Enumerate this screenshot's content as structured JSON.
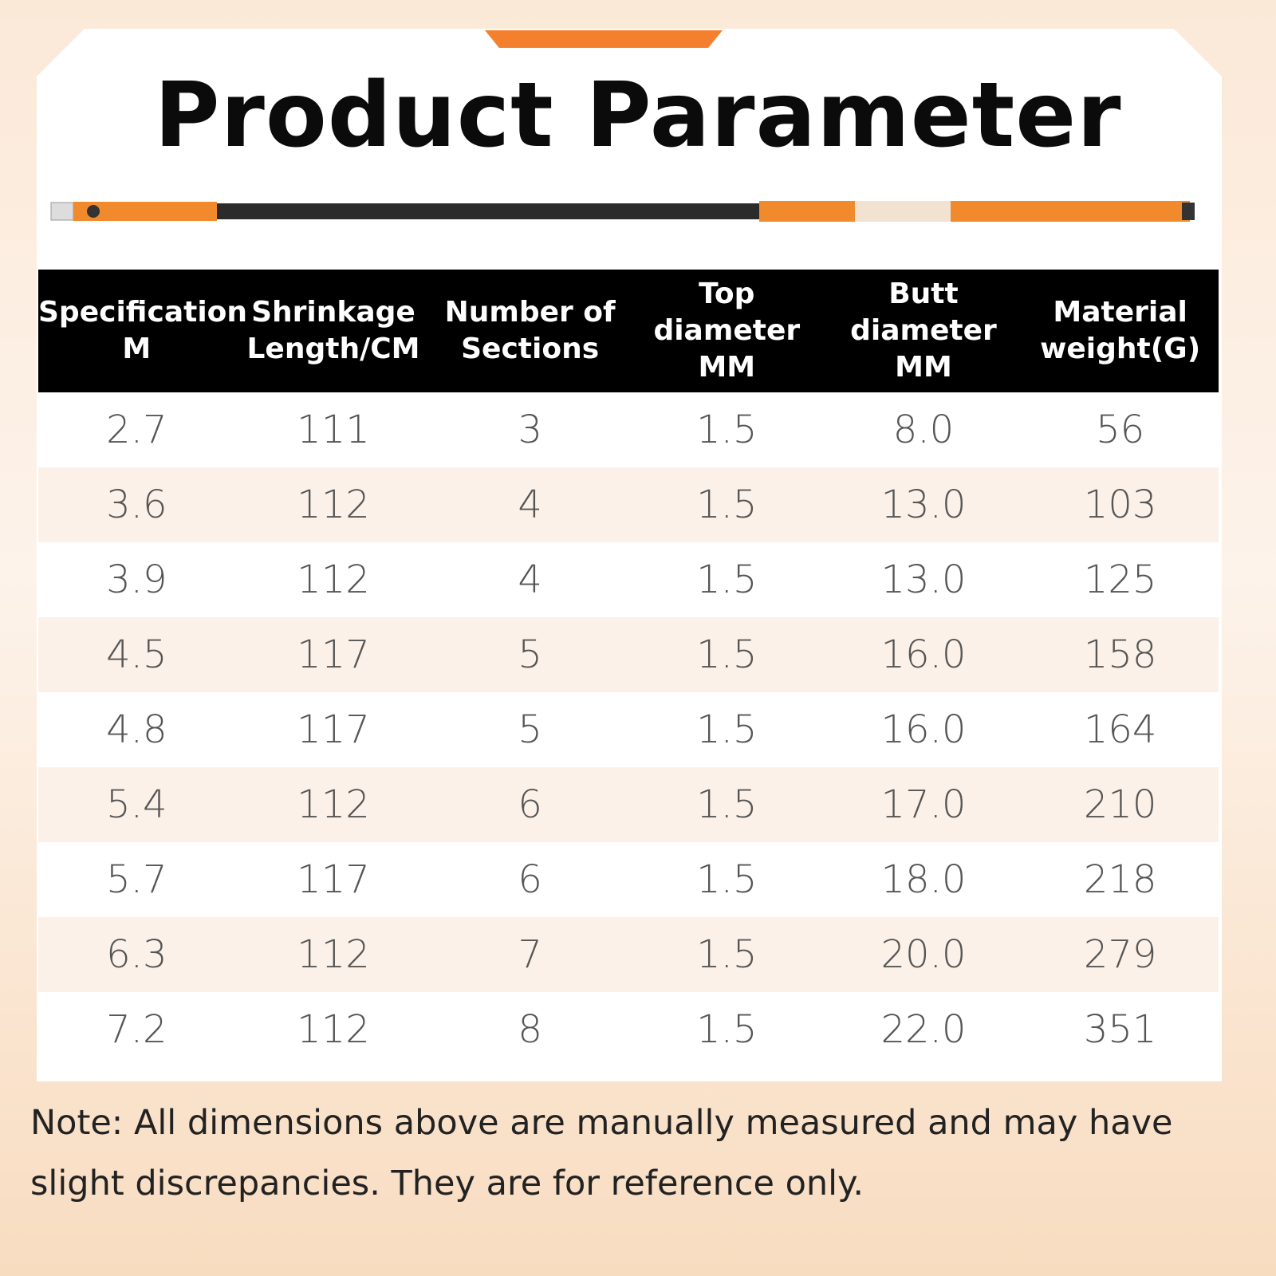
{
  "header": {
    "title": "Product Parameter"
  },
  "table": {
    "columns": [
      [
        "Specification",
        "M"
      ],
      [
        "Shrinkage",
        "Length/CM"
      ],
      [
        "Number of",
        "Sections"
      ],
      [
        "Top",
        "diameter",
        "MM"
      ],
      [
        "Butt",
        "diameter",
        "MM"
      ],
      [
        "Material",
        "weight(G)"
      ]
    ],
    "rows": [
      [
        "2.7",
        "111",
        "3",
        "1.5",
        "8.0",
        "56"
      ],
      [
        "3.6",
        "112",
        "4",
        "1.5",
        "13.0",
        "103"
      ],
      [
        "3.9",
        "112",
        "4",
        "1.5",
        "13.0",
        "125"
      ],
      [
        "4.5",
        "117",
        "5",
        "1.5",
        "16.0",
        "158"
      ],
      [
        "4.8",
        "117",
        "5",
        "1.5",
        "16.0",
        "164"
      ],
      [
        "5.4",
        "112",
        "6",
        "1.5",
        "17.0",
        "210"
      ],
      [
        "5.7",
        "117",
        "6",
        "1.5",
        "18.0",
        "218"
      ],
      [
        "6.3",
        "112",
        "7",
        "1.5",
        "20.0",
        "279"
      ],
      [
        "7.2",
        "112",
        "8",
        "1.5",
        "22.0",
        "351"
      ]
    ]
  },
  "note": "Note: All dimensions above are manually measured and may have slight discrepancies. They are for reference only."
}
